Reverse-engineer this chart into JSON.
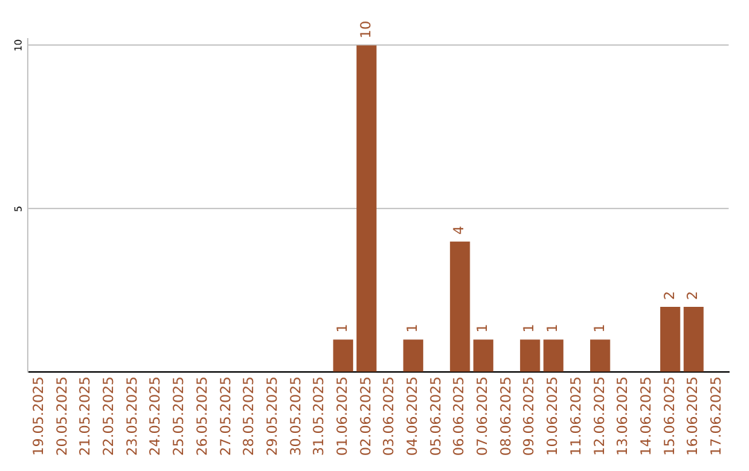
{
  "chart_data": {
    "type": "bar",
    "categories": [
      "19.05.2025",
      "20.05.2025",
      "21.05.2025",
      "22.05.2025",
      "23.05.2025",
      "24.05.2025",
      "25.05.2025",
      "26.05.2025",
      "27.05.2025",
      "28.05.2025",
      "29.05.2025",
      "30.05.2025",
      "31.05.2025",
      "01.06.2025",
      "02.06.2025",
      "03.06.2025",
      "04.06.2025",
      "05.06.2025",
      "06.06.2025",
      "07.06.2025",
      "08.06.2025",
      "09.06.2025",
      "10.06.2025",
      "11.06.2025",
      "12.06.2025",
      "13.06.2025",
      "14.06.2025",
      "15.06.2025",
      "16.06.2025",
      "17.06.2025"
    ],
    "values": [
      0,
      0,
      0,
      0,
      0,
      0,
      0,
      0,
      0,
      0,
      0,
      0,
      0,
      1,
      10,
      0,
      1,
      0,
      4,
      1,
      0,
      1,
      1,
      0,
      1,
      0,
      0,
      2,
      2,
      0
    ],
    "value_labels": [
      null,
      null,
      null,
      null,
      null,
      null,
      null,
      null,
      null,
      null,
      null,
      null,
      null,
      "1",
      "10",
      null,
      "1",
      null,
      "4",
      "1",
      null,
      "1",
      "1",
      null,
      "1",
      null,
      null,
      "2",
      "2",
      null
    ],
    "color": "#a0522d",
    "ylim": [
      0,
      10.2
    ],
    "yticks": [
      {
        "value": 0,
        "label": null
      },
      5,
      10
    ],
    "grid": "y",
    "legend": false
  }
}
